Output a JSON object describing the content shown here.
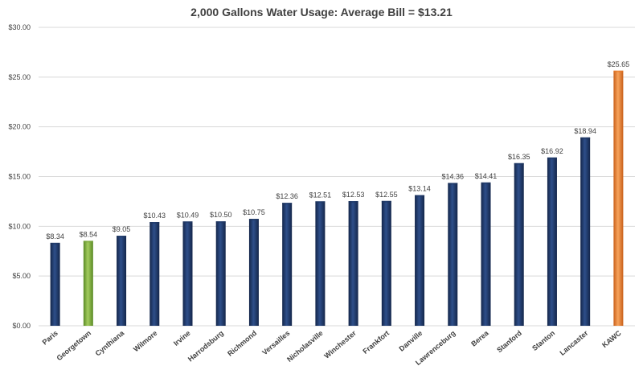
{
  "chart_data": {
    "type": "bar",
    "title": "2,000 Gallons Water Usage:  Average Bill = $13.21",
    "xlabel": "",
    "ylabel": "",
    "ylim": [
      0,
      30
    ],
    "y_ticks": [
      0,
      5,
      10,
      15,
      20,
      25,
      30
    ],
    "y_tick_labels": [
      "$0.00",
      "$5.00",
      "$10.00",
      "$15.00",
      "$20.00",
      "$25.00",
      "$30.00"
    ],
    "grid": true,
    "categories": [
      "Paris",
      "Georgetown",
      "Cynthiana",
      "Wilmore",
      "Irvine",
      "Harrodsburg",
      "Richmond",
      "Versailles",
      "Nicholasville",
      "Winchester",
      "Frankfort",
      "Danville",
      "Lawrenceburg",
      "Berea",
      "Stanford",
      "Stanton",
      "Lancaster",
      "KAWC"
    ],
    "values": [
      8.34,
      8.54,
      9.05,
      10.43,
      10.49,
      10.5,
      10.75,
      12.36,
      12.51,
      12.53,
      12.55,
      13.14,
      14.36,
      14.41,
      16.35,
      16.92,
      18.94,
      25.65
    ],
    "data_labels": [
      "$8.34",
      "$8.54",
      "$9.05",
      "$10.43",
      "$10.49",
      "$10.50",
      "$10.75",
      "$12.36",
      "$12.51",
      "$12.53",
      "$12.55",
      "$13.14",
      "$14.36",
      "$14.41",
      "$16.35",
      "$16.92",
      "$18.94",
      "$25.65"
    ],
    "bar_colors": [
      "#1f3864",
      "#77a33a",
      "#1f3864",
      "#1f3864",
      "#1f3864",
      "#1f3864",
      "#1f3864",
      "#1f3864",
      "#1f3864",
      "#1f3864",
      "#1f3864",
      "#1f3864",
      "#1f3864",
      "#1f3864",
      "#1f3864",
      "#1f3864",
      "#1f3864",
      "#e97b2a"
    ]
  },
  "colors": {
    "default_bar": "#1f3864",
    "highlight_green": "#77a33a",
    "highlight_orange": "#e97b2a",
    "grid": "#d9d9d9"
  }
}
